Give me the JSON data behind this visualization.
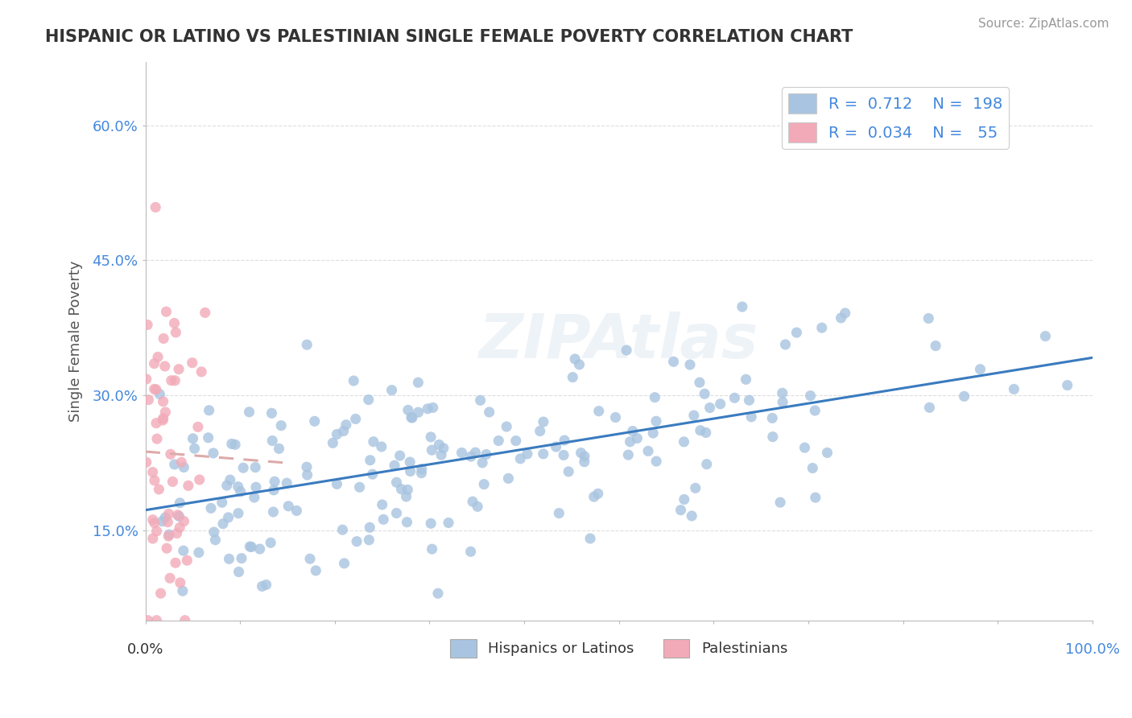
{
  "title": "HISPANIC OR LATINO VS PALESTINIAN SINGLE FEMALE POVERTY CORRELATION CHART",
  "source_text": "Source: ZipAtlas.com",
  "ylabel": "Single Female Poverty",
  "xlim": [
    0.0,
    1.0
  ],
  "ylim": [
    0.05,
    0.67
  ],
  "yticks": [
    0.15,
    0.3,
    0.45,
    0.6
  ],
  "ytick_labels": [
    "15.0%",
    "30.0%",
    "45.0%",
    "60.0%"
  ],
  "blue_R": 0.712,
  "blue_N": 198,
  "pink_R": 0.034,
  "pink_N": 55,
  "blue_color": "#a8c4e0",
  "pink_color": "#f2aab8",
  "blue_line_color": "#3a7bbf",
  "pink_line_color": "#ddaaaa",
  "legend_label_blue": "Hispanics or Latinos",
  "legend_label_pink": "Palestinians",
  "title_color": "#333333",
  "source_color": "#999999",
  "accent_color": "#4488dd",
  "watermark": "ZIPAtlas",
  "background_color": "#ffffff",
  "grid_color": "#dddddd"
}
